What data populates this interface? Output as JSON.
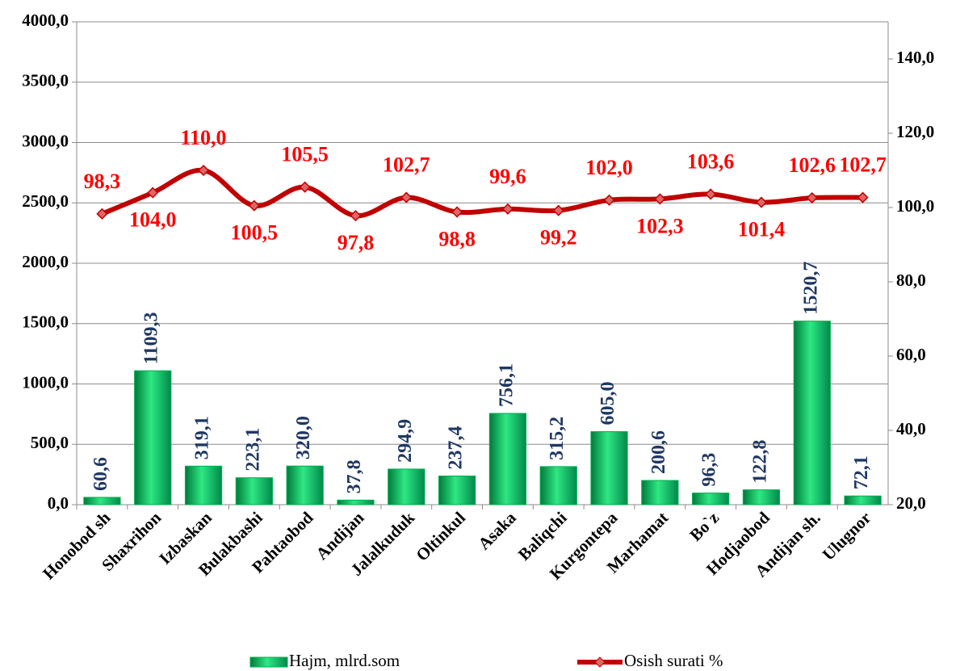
{
  "chart_data": {
    "type": "bar-line",
    "categories": [
      "Honobod sh",
      "Shaxrihon",
      "Izbaskan",
      "Bulakbashi",
      "Pahtaobod",
      "Andijan",
      "Jalalkuduk",
      "Oltinkul",
      "Asaka",
      "Baliqchi",
      "Kurgontepa",
      "Marhamat",
      "Bo`z",
      "Hodjaobod",
      "Andijan sh.",
      "Ulugnor"
    ],
    "series": [
      {
        "name": "Hajm, mlrd.som",
        "type": "bar",
        "color": "#00b050",
        "values": [
          60.6,
          1109.3,
          319.1,
          223.1,
          320.0,
          37.8,
          294.9,
          237.4,
          756.1,
          315.2,
          605.0,
          200.6,
          96.3,
          122.8,
          1520.7,
          72.1
        ],
        "value_labels": [
          "60,6",
          "1109,3",
          "319,1",
          "223,1",
          "320,0",
          "37,8",
          "294,9",
          "237,4",
          "756,1",
          "315,2",
          "605,0",
          "200,6",
          "96,3",
          "122,8",
          "1520,7",
          "72,1"
        ],
        "label_color": "#1f3864"
      },
      {
        "name": "Osish surati %",
        "type": "line",
        "axis": "y2",
        "color": "#c00000",
        "values": [
          98.3,
          104.0,
          110.0,
          100.5,
          105.5,
          97.8,
          102.7,
          98.8,
          99.6,
          99.2,
          102.0,
          102.3,
          103.6,
          101.4,
          102.6,
          102.7
        ],
        "value_labels": [
          "98,3",
          "104,0",
          "110,0",
          "100,5",
          "105,5",
          "97,8",
          "102,7",
          "98,8",
          "99,6",
          "99,2",
          "102,0",
          "102,3",
          "103,6",
          "101,4",
          "102,6",
          "102,7"
        ]
      }
    ],
    "ylim": [
      0,
      4000
    ],
    "yticks": [
      {
        "value": 0,
        "label": "0,0"
      },
      {
        "value": 500,
        "label": "500,0"
      },
      {
        "value": 1000,
        "label": "1000,0"
      },
      {
        "value": 1500,
        "label": "1500,0"
      },
      {
        "value": 2000,
        "label": "2000,0"
      },
      {
        "value": 2500,
        "label": "2500,0"
      },
      {
        "value": 3000,
        "label": "3000,0"
      },
      {
        "value": 3500,
        "label": "3500,0"
      },
      {
        "value": 4000,
        "label": "4000,0"
      }
    ],
    "y2lim": [
      20,
      150
    ],
    "y2ticks": [
      {
        "value": 20,
        "label": "20,0"
      },
      {
        "value": 40,
        "label": "40,0"
      },
      {
        "value": 60,
        "label": "60,0"
      },
      {
        "value": 80,
        "label": "80,0"
      },
      {
        "value": 100,
        "label": "100,0"
      },
      {
        "value": 120,
        "label": "120,0"
      },
      {
        "value": 140,
        "label": "140,0"
      }
    ],
    "grid": true,
    "legend": "bottom"
  }
}
